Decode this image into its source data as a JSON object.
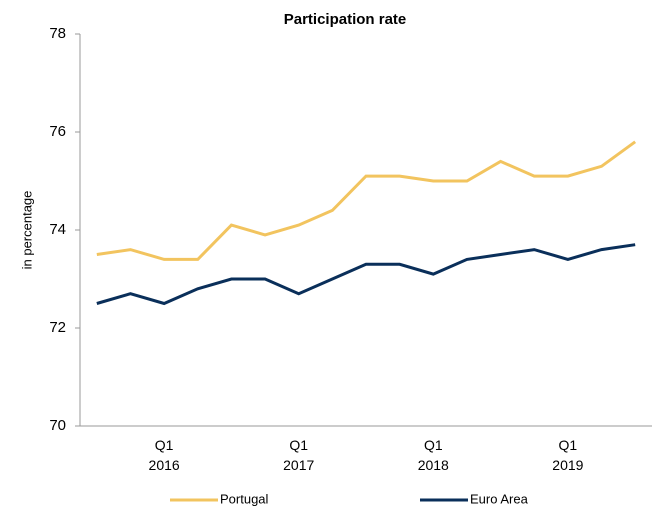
{
  "chart_data": {
    "type": "line",
    "title": "Participation rate",
    "y_label": "in percentage",
    "categories": [
      null,
      null,
      "Q1 2016",
      null,
      null,
      null,
      "Q1 2017",
      null,
      null,
      null,
      "Q1 2018",
      null,
      null,
      null,
      "Q1 2019",
      null,
      null
    ],
    "series": [
      {
        "name": "Portugal",
        "color": "#f2c45f",
        "values": [
          73.5,
          73.6,
          73.4,
          73.4,
          74.1,
          73.9,
          74.1,
          74.4,
          75.1,
          75.1,
          75.0,
          75.0,
          75.4,
          75.1,
          75.1,
          75.3,
          75.8
        ]
      },
      {
        "name": "Euro Area",
        "color": "#0a2f5a",
        "values": [
          72.5,
          72.7,
          72.5,
          72.8,
          73.0,
          73.0,
          72.7,
          73.0,
          73.3,
          73.3,
          73.1,
          73.4,
          73.5,
          73.6,
          73.4,
          73.6,
          73.7
        ]
      }
    ],
    "ylim": [
      70,
      78
    ],
    "yticks": [
      70,
      72,
      74,
      76,
      78
    ],
    "legend": "bottom"
  }
}
